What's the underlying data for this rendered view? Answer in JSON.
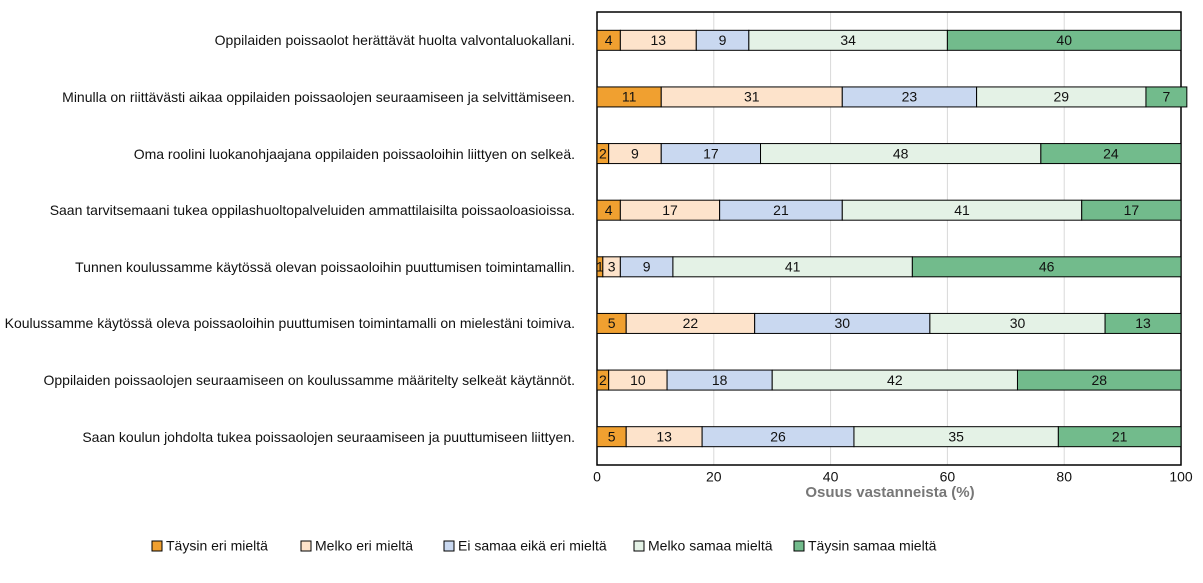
{
  "chart_data": {
    "type": "stacked_bar_horizontal",
    "categories": [
      "Oppilaiden poissaolot herättävät huolta valvontaluokallani.",
      "Minulla on riittävästi aikaa oppilaiden poissaolojen seuraamiseen ja selvittämiseen.",
      "Oma roolini luokanohjaajana oppilaiden poissaoloihin liittyen on selkeä.",
      "Saan tarvitsemaani tukea oppilashuoltopalveluiden ammattilaisilta poissaoloasioissa.",
      "Tunnen koulussamme käytössä olevan poissaoloihin puuttumisen toimintamallin.",
      "Koulussamme käytössä oleva poissaoloihin puuttumisen toimintamalli on mielestäni toimiva.",
      "Oppilaiden poissaolojen seuraamiseen on koulussamme määritelty selkeät käytännöt.",
      "Saan koulun johdolta tukea poissaolojen seuraamiseen ja puuttumiseen liittyen."
    ],
    "series": [
      {
        "name": "Täysin eri mieltä",
        "color": "#f0a030",
        "values": [
          4,
          11,
          2,
          4,
          1,
          5,
          2,
          5
        ]
      },
      {
        "name": "Melko eri mieltä",
        "color": "#fde3cb",
        "values": [
          13,
          31,
          9,
          17,
          3,
          22,
          10,
          13
        ]
      },
      {
        "name": "Ei samaa eikä eri mieltä",
        "color": "#c9d8f0",
        "values": [
          9,
          23,
          17,
          21,
          9,
          30,
          18,
          26
        ]
      },
      {
        "name": "Melko samaa mieltä",
        "color": "#e4f2e6",
        "values": [
          34,
          29,
          48,
          41,
          41,
          30,
          42,
          35
        ]
      },
      {
        "name": "Täysin samaa mieltä",
        "color": "#72bb8c",
        "values": [
          40,
          7,
          24,
          17,
          46,
          13,
          28,
          21
        ]
      }
    ],
    "xlabel": "Osuus vastanneista (%)",
    "xlim": [
      0,
      100
    ],
    "xticks": [
      0,
      20,
      40,
      60,
      80,
      100
    ],
    "grid": true
  }
}
